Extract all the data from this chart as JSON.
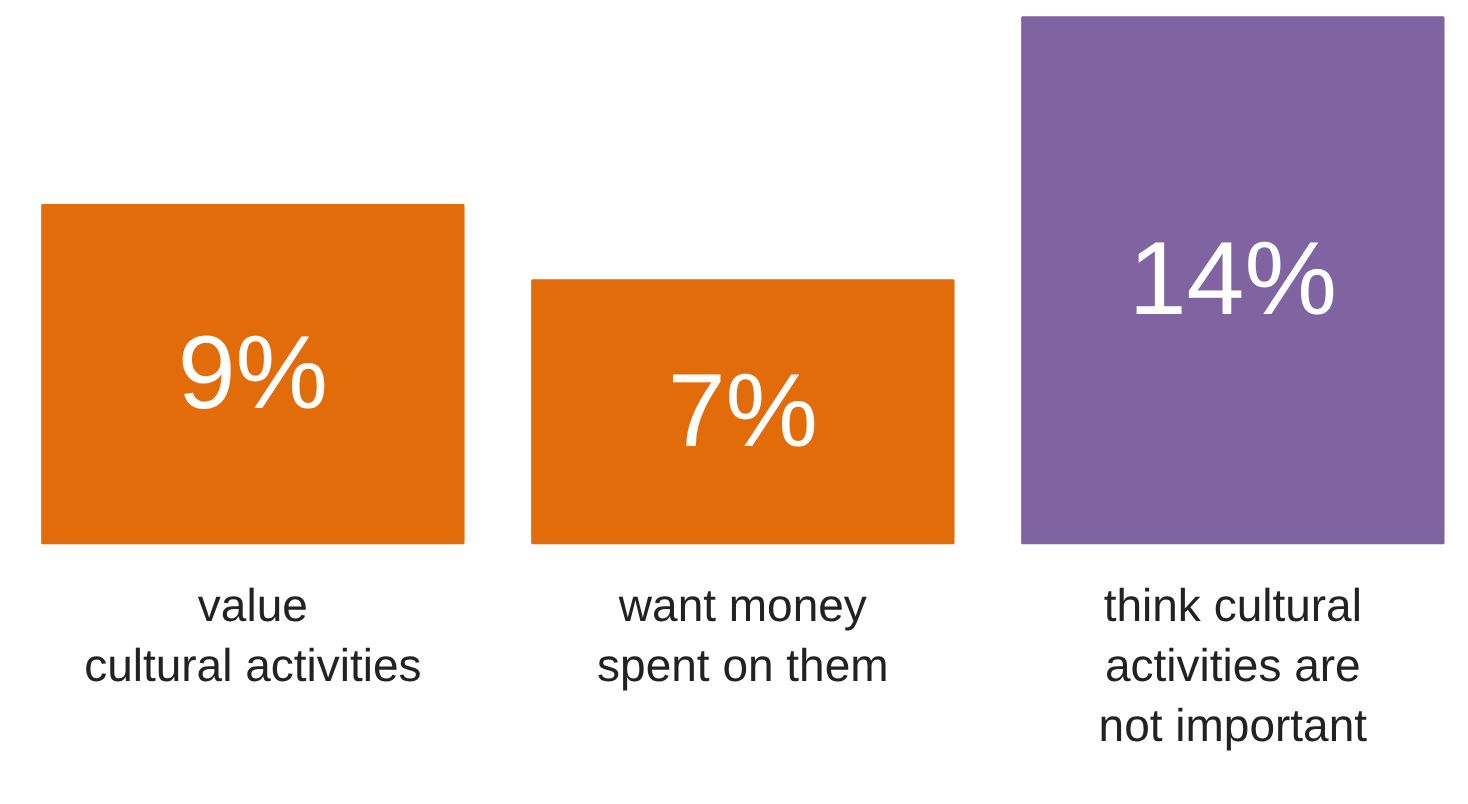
{
  "chart_data": {
    "type": "bar",
    "categories": [
      "value\ncultural activities",
      "want money\nspent on them",
      "think cultural\nactivities are\nnot important"
    ],
    "values": [
      9,
      7,
      14
    ],
    "colors": [
      "#e36c0a",
      "#e36c0a",
      "#8064a2"
    ],
    "value_labels": [
      "9%",
      "7%",
      "14%"
    ],
    "grid": false
  }
}
